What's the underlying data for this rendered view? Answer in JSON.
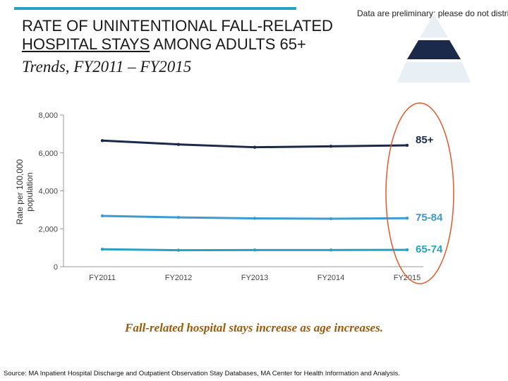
{
  "header": {
    "disclaimer": "Data are preliminary; please do not distri",
    "title_line1": "RATE OF UNINTENTIONAL FALL-RELATED",
    "title_line2": "HOSPITAL STAYS",
    "title_line2_rest": " AMONG ADULTS 65+",
    "subtitle": "Trends, FY2011 – FY2015"
  },
  "colors": {
    "accent_bar": "#2aa1c0",
    "series_85": "#1b2a4a",
    "series_75": "#3d9bd1",
    "series_65": "#2aa1c0",
    "highlight_ellipse": "#e05a2a",
    "finding_text": "#9b5a11"
  },
  "icon": {
    "name": "pyramid-icon"
  },
  "chart_data": {
    "type": "line",
    "categories": [
      "FY2011",
      "FY2012",
      "FY2013",
      "FY2014",
      "FY2015"
    ],
    "ylabel": "Rate per 100,000 population",
    "ylim": [
      0,
      8000
    ],
    "yticks": [
      "0",
      "2,000",
      "4,000",
      "6,000",
      "8,000"
    ],
    "series": [
      {
        "name": "85+",
        "values": [
          6650,
          6450,
          6300,
          6350,
          6400
        ]
      },
      {
        "name": "75-84",
        "values": [
          2680,
          2600,
          2550,
          2530,
          2560
        ]
      },
      {
        "name": "65-74",
        "values": [
          920,
          870,
          880,
          880,
          890
        ]
      }
    ],
    "grid": false
  },
  "finding": "Fall-related hospital stays increase as age increases.",
  "source": "Source: MA Inpatient Hospital Discharge and Outpatient Observation Stay Databases, MA Center for Health Information and Analysis."
}
